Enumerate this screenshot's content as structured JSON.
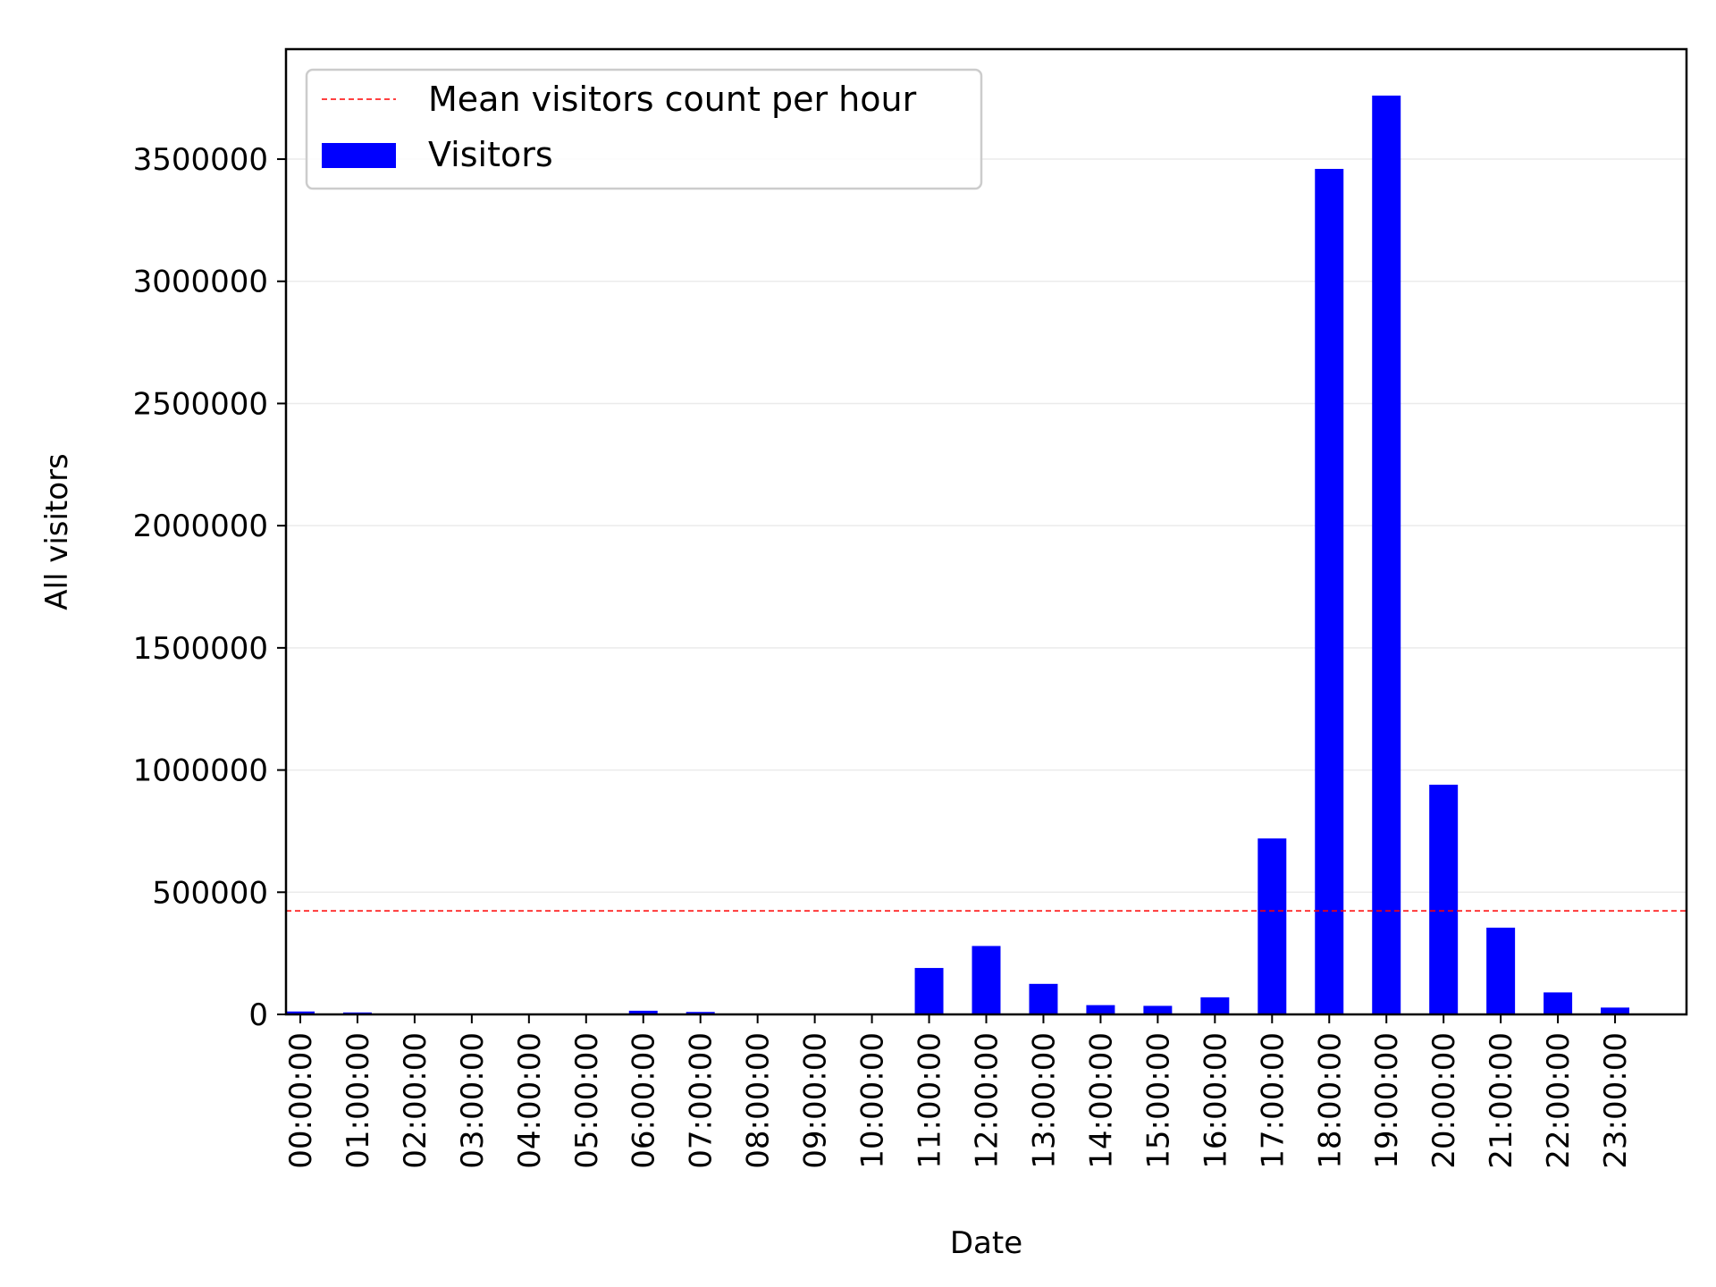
{
  "chart_data": {
    "type": "bar",
    "xlabel": "Date",
    "ylabel": "All visitors",
    "categories": [
      "00:00:00",
      "01:00:00",
      "02:00:00",
      "03:00:00",
      "04:00:00",
      "05:00:00",
      "06:00:00",
      "07:00:00",
      "08:00:00",
      "09:00:00",
      "10:00:00",
      "11:00:00",
      "12:00:00",
      "13:00:00",
      "14:00:00",
      "15:00:00",
      "16:00:00",
      "17:00:00",
      "18:00:00",
      "19:00:00",
      "20:00:00",
      "21:00:00",
      "22:00:00",
      "23:00:00"
    ],
    "series": [
      {
        "name": "Visitors",
        "values": [
          12000,
          8000,
          2000,
          1000,
          1000,
          2000,
          15000,
          10000,
          2000,
          1000,
          3000,
          190000,
          280000,
          125000,
          38000,
          35000,
          70000,
          720000,
          3460000,
          3760000,
          940000,
          355000,
          90000,
          28000
        ]
      }
    ],
    "mean_line": {
      "name": "Mean visitors count per hour",
      "value": 424000
    },
    "ylim": [
      0,
      3950000
    ],
    "yticks": [
      0,
      500000,
      1000000,
      1500000,
      2000000,
      2500000,
      3000000,
      3500000
    ],
    "ytick_labels": [
      "0",
      "500000",
      "1000000",
      "1500000",
      "2000000",
      "2500000",
      "3000000",
      "3500000"
    ],
    "grid": "horizontal",
    "legend_position": "top-left",
    "colors": {
      "bar": "#0000ff",
      "mean_line": "#ff0000",
      "grid": "#ebebeb",
      "axis": "#000000"
    }
  }
}
